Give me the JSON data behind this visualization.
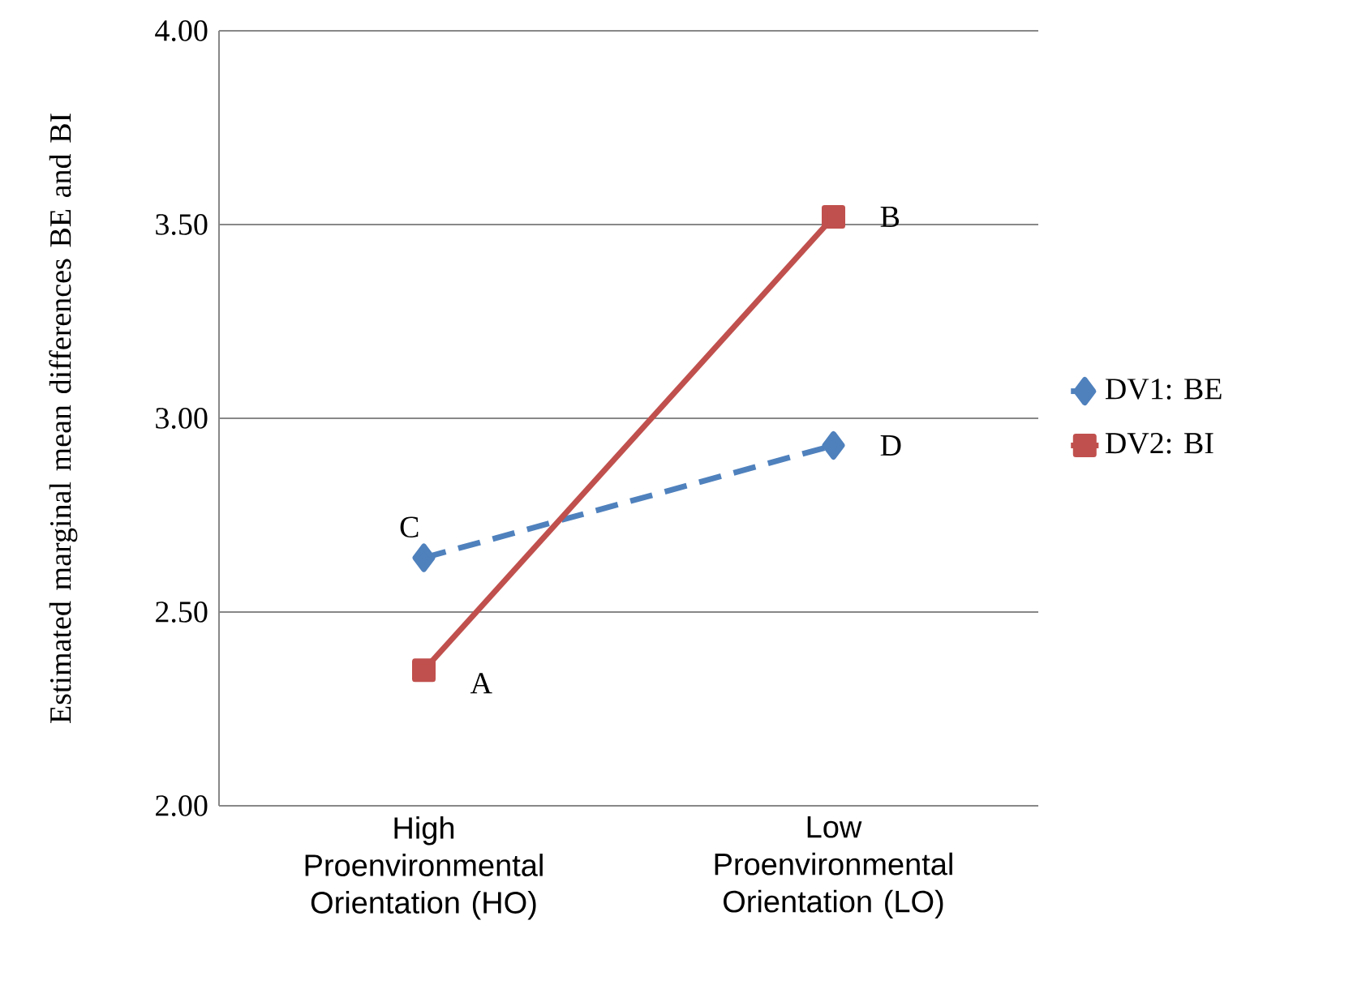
{
  "chart_data": {
    "type": "line",
    "categories": [
      "High Proenvironmental Orientation (HO)",
      "Low Proenvironmental Orientation (LO)"
    ],
    "ylabel": "Estimated marginal mean differences BE and BI",
    "series": [
      {
        "name": "DV1: BE",
        "color": "#4f81bd",
        "values": [
          2.64,
          2.93
        ],
        "marker": "diamond",
        "line_style": "dashed"
      },
      {
        "name": "DV2: BI",
        "color": "#c0504d",
        "values": [
          2.35,
          3.52
        ],
        "marker": "square",
        "line_style": "solid"
      }
    ],
    "ylim": [
      2.0,
      4.0
    ],
    "yticks": [
      {
        "value": 2.0,
        "label": "2.00"
      },
      {
        "value": 2.5,
        "label": "2.50"
      },
      {
        "value": 3.0,
        "label": "3.00"
      },
      {
        "value": 3.5,
        "label": "3.50"
      },
      {
        "value": 4.0,
        "label": "4.00"
      }
    ],
    "grid": "y",
    "legend": "right",
    "annotations": [
      {
        "text": "A",
        "x": "High Proenvironmental Orientation (HO)",
        "y": 2.35
      },
      {
        "text": "B",
        "x": "Low Proenvironmental Orientation (LO)",
        "y": 3.52
      },
      {
        "text": "C",
        "x": "High Proenvironmental Orientation (HO)",
        "y": 2.64
      },
      {
        "text": "D",
        "x": "Low Proenvironmental Orientation (LO)",
        "y": 2.93
      }
    ]
  }
}
